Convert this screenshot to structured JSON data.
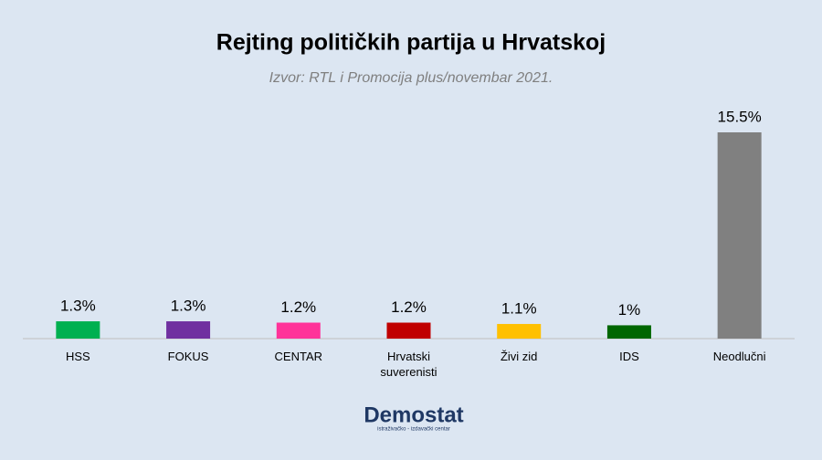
{
  "chart_data": {
    "type": "bar",
    "title": "Rejting političkih partija u Hrvatskoj",
    "subtitle": "Izvor: RTL i Promocija plus/novembar 2021.",
    "categories": [
      "HSS",
      "FOKUS",
      "CENTAR",
      "Hrvatski suverenisti",
      "Živi zid",
      "IDS",
      "Neodlučni"
    ],
    "values": [
      1.3,
      1.3,
      1.2,
      1.2,
      1.1,
      1,
      15.5
    ],
    "value_labels": [
      "1.3%",
      "1.3%",
      "1.2%",
      "1.2%",
      "1.1%",
      "1%",
      "15.5%"
    ],
    "colors": [
      "#00b050",
      "#7030a0",
      "#ff3399",
      "#c00000",
      "#ffc000",
      "#006600",
      "#808080"
    ]
  },
  "footer": {
    "logo": "Demostat",
    "tagline": "istraživačko - izdavački centar"
  }
}
